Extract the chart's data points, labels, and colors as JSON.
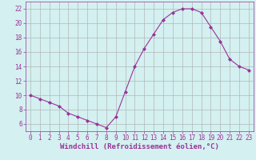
{
  "x": [
    0,
    1,
    2,
    3,
    4,
    5,
    6,
    7,
    8,
    9,
    10,
    11,
    12,
    13,
    14,
    15,
    16,
    17,
    18,
    19,
    20,
    21,
    22,
    23
  ],
  "y": [
    10,
    9.5,
    9,
    8.5,
    7.5,
    7,
    6.5,
    6,
    5.5,
    7,
    10.5,
    14,
    16.5,
    18.5,
    20.5,
    21.5,
    22,
    22,
    21.5,
    19.5,
    17.5,
    15,
    14,
    13.5
  ],
  "line_color": "#993399",
  "marker": "D",
  "marker_size": 2.0,
  "bg_color": "#d4f0f0",
  "grid_color": "#aaaaaa",
  "xlabel": "Windchill (Refroidissement éolien,°C)",
  "xlabel_color": "#993399",
  "xlabel_fontsize": 6.5,
  "yticks": [
    6,
    8,
    10,
    12,
    14,
    16,
    18,
    20,
    22
  ],
  "xticks": [
    0,
    1,
    2,
    3,
    4,
    5,
    6,
    7,
    8,
    9,
    10,
    11,
    12,
    13,
    14,
    15,
    16,
    17,
    18,
    19,
    20,
    21,
    22,
    23
  ],
  "ylim": [
    5.0,
    23.0
  ],
  "xlim": [
    -0.5,
    23.5
  ],
  "tick_color": "#993399",
  "tick_fontsize": 5.5,
  "spine_color": "#993399",
  "line_width": 0.8
}
